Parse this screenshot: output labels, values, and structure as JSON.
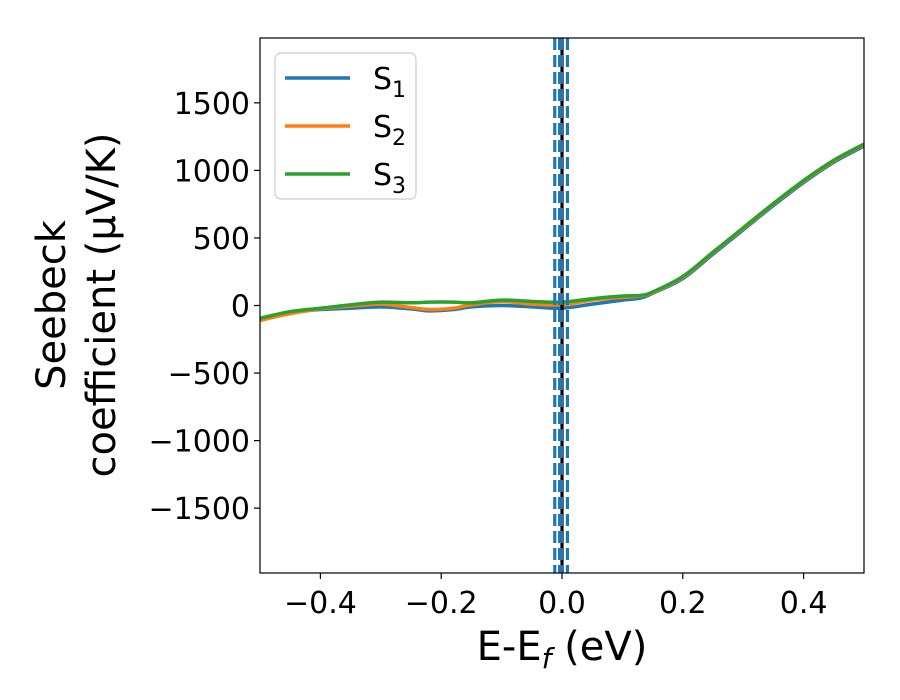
{
  "chart_data": {
    "type": "line",
    "xlabel": "E-E",
    "xlabel_sub": "f",
    "xlabel_suffix": " (eV)",
    "ylabel_line1": "Seebeck",
    "ylabel_line2": "coefficient  (μV/K)",
    "xlim": [
      -0.5,
      0.5
    ],
    "ylim": [
      -1980,
      1980
    ],
    "xticks": [
      -0.4,
      -0.2,
      0.0,
      0.2,
      0.4
    ],
    "xtick_labels": [
      "−0.4",
      "−0.2",
      "0.0",
      "0.2",
      "0.4"
    ],
    "yticks": [
      1500,
      1000,
      500,
      0,
      -500,
      -1000,
      -1500
    ],
    "ytick_labels": [
      "1500",
      "1000",
      "500",
      "0",
      "−500",
      "−1000",
      "−1500"
    ],
    "grid": false,
    "legend_placement": "top-left",
    "series": [
      {
        "name": "S",
        "sub": "1",
        "color": "#1f77b4",
        "x": [
          -0.5,
          -0.45,
          -0.4,
          -0.35,
          -0.3,
          -0.25,
          -0.22,
          -0.18,
          -0.15,
          -0.1,
          -0.05,
          0.0,
          0.05,
          0.1,
          0.13,
          0.15,
          0.2,
          0.25,
          0.3,
          0.35,
          0.4,
          0.45,
          0.5
        ],
        "y": [
          -110,
          -55,
          -30,
          -20,
          -10,
          -25,
          -40,
          -30,
          -10,
          0,
          -10,
          -20,
          10,
          40,
          55,
          90,
          200,
          380,
          560,
          740,
          910,
          1060,
          1180
        ]
      },
      {
        "name": "S",
        "sub": "2",
        "color": "#ff7f0e",
        "x": [
          -0.5,
          -0.45,
          -0.4,
          -0.35,
          -0.3,
          -0.25,
          -0.22,
          -0.18,
          -0.15,
          -0.1,
          -0.05,
          0.0,
          0.05,
          0.1,
          0.13,
          0.15,
          0.2,
          0.25,
          0.3,
          0.35,
          0.4,
          0.45,
          0.5
        ],
        "y": [
          -110,
          -60,
          -25,
          -5,
          10,
          -15,
          -30,
          -20,
          5,
          30,
          10,
          5,
          40,
          60,
          70,
          95,
          210,
          390,
          570,
          750,
          920,
          1070,
          1190
        ]
      },
      {
        "name": "S",
        "sub": "3",
        "color": "#2ca02c",
        "x": [
          -0.5,
          -0.45,
          -0.4,
          -0.35,
          -0.3,
          -0.25,
          -0.22,
          -0.18,
          -0.15,
          -0.1,
          -0.05,
          0.0,
          0.05,
          0.1,
          0.13,
          0.15,
          0.2,
          0.25,
          0.3,
          0.35,
          0.4,
          0.45,
          0.5
        ],
        "y": [
          -95,
          -45,
          -20,
          5,
          25,
          20,
          25,
          25,
          20,
          40,
          30,
          25,
          50,
          70,
          75,
          100,
          215,
          395,
          575,
          755,
          925,
          1075,
          1195
        ]
      }
    ],
    "vlines": [
      {
        "x": 0.0,
        "color": "#000000",
        "style": "solid"
      },
      {
        "x": -0.012,
        "color": "#1f77b4",
        "style": "dashed"
      },
      {
        "x": -0.004,
        "color": "#1f77b4",
        "style": "dashed"
      },
      {
        "x": 0.009,
        "color": "#1f77b4",
        "style": "dashed"
      },
      {
        "x": -0.001,
        "color": "#1f77b4",
        "style": "dashed"
      }
    ]
  }
}
